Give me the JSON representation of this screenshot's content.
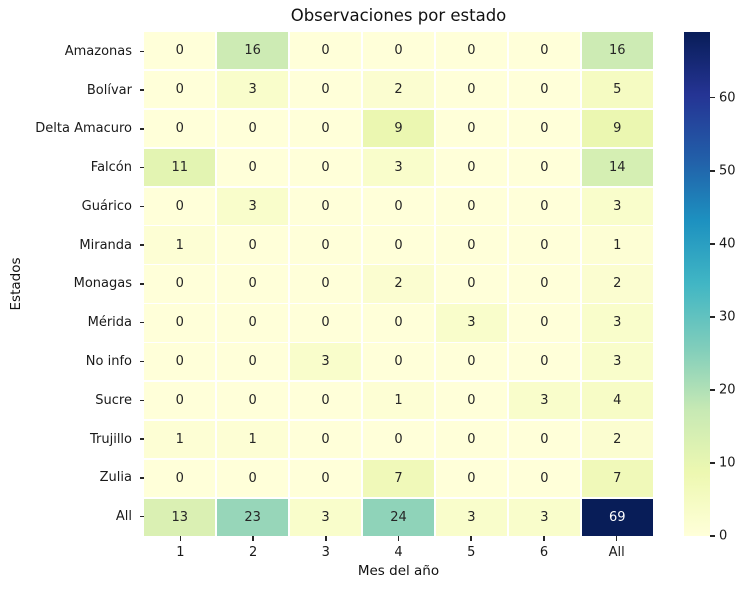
{
  "title": "Observaciones por estado",
  "chart_data": {
    "type": "heatmap",
    "title": "Observaciones por estado",
    "xlabel": "Mes del año",
    "ylabel": "Estados",
    "columns": [
      "1",
      "2",
      "3",
      "4",
      "5",
      "6",
      "All"
    ],
    "rows": [
      "Amazonas",
      "Bolívar",
      "Delta Amacuro",
      "Falcón",
      "Guárico",
      "Miranda",
      "Monagas",
      "Mérida",
      "No info",
      "Sucre",
      "Trujillo",
      "Zulia",
      "All"
    ],
    "values": [
      [
        0,
        16,
        0,
        0,
        0,
        0,
        16
      ],
      [
        0,
        3,
        0,
        2,
        0,
        0,
        5
      ],
      [
        0,
        0,
        0,
        9,
        0,
        0,
        9
      ],
      [
        11,
        0,
        0,
        3,
        0,
        0,
        14
      ],
      [
        0,
        3,
        0,
        0,
        0,
        0,
        3
      ],
      [
        1,
        0,
        0,
        0,
        0,
        0,
        1
      ],
      [
        0,
        0,
        0,
        2,
        0,
        0,
        2
      ],
      [
        0,
        0,
        0,
        0,
        3,
        0,
        3
      ],
      [
        0,
        0,
        3,
        0,
        0,
        0,
        3
      ],
      [
        0,
        0,
        0,
        1,
        0,
        3,
        4
      ],
      [
        1,
        1,
        0,
        0,
        0,
        0,
        2
      ],
      [
        0,
        0,
        0,
        7,
        0,
        0,
        7
      ],
      [
        13,
        23,
        3,
        24,
        3,
        3,
        69
      ]
    ],
    "vmin": 0,
    "vmax": 69,
    "colormap": "YlGnBu",
    "colormap_stops": [
      "#ffffd9",
      "#edf8b1",
      "#c7e9b4",
      "#7fcdbb",
      "#41b6c4",
      "#1d91c0",
      "#225ea8",
      "#253494",
      "#081d58"
    ],
    "colorbar_ticks": [
      0,
      10,
      20,
      30,
      40,
      50,
      60
    ],
    "annotation_color_dark": "#262626",
    "annotation_color_light": "#ffffff",
    "grid_line_color": "#ffffff",
    "legend_position": "right-colorbar",
    "grid": false
  }
}
